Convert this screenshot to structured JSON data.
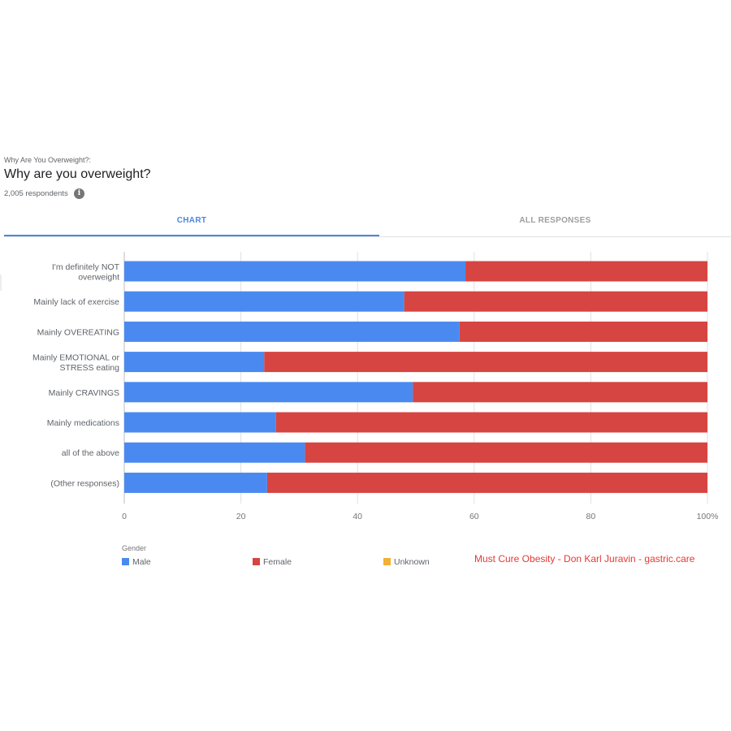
{
  "header": {
    "question_label": "Why Are You Overweight?:",
    "title": "Why are you overweight?",
    "respondents": "2,005 respondents",
    "info_icon": "info-icon"
  },
  "tabs": [
    {
      "label": "CHART",
      "active": true
    },
    {
      "label": "ALL RESPONSES",
      "active": false
    }
  ],
  "chart_data": {
    "type": "bar",
    "orientation": "horizontal",
    "stacked": "percent",
    "categories": [
      [
        "I'm definitely NOT",
        "overweight"
      ],
      [
        "Mainly lack of exercise"
      ],
      [
        "Mainly OVEREATING"
      ],
      [
        "Mainly EMOTIONAL or",
        "STRESS eating"
      ],
      [
        "Mainly CRAVINGS"
      ],
      [
        "Mainly medications"
      ],
      [
        "all of the above"
      ],
      [
        "(Other responses)"
      ]
    ],
    "series": [
      {
        "name": "Male",
        "color": "#4a8af0",
        "values": [
          58.5,
          48,
          57.5,
          24,
          49.5,
          26,
          31,
          24.5
        ]
      },
      {
        "name": "Female",
        "color": "#d64541",
        "values": [
          41.5,
          52,
          42.5,
          76,
          50.5,
          74,
          69,
          75.5
        ]
      },
      {
        "name": "Unknown",
        "color": "#f2b134",
        "values": [
          0,
          0,
          0,
          0,
          0,
          0,
          0,
          0
        ]
      }
    ],
    "xlim": [
      0,
      100
    ],
    "x_ticks": [
      "0",
      "20",
      "40",
      "60",
      "80",
      "100%"
    ],
    "grid": true,
    "legend_title": "Gender",
    "legend_position": "bottom"
  },
  "watermark": "Must Cure Obesity - Don Karl Juravin - gastric.care"
}
